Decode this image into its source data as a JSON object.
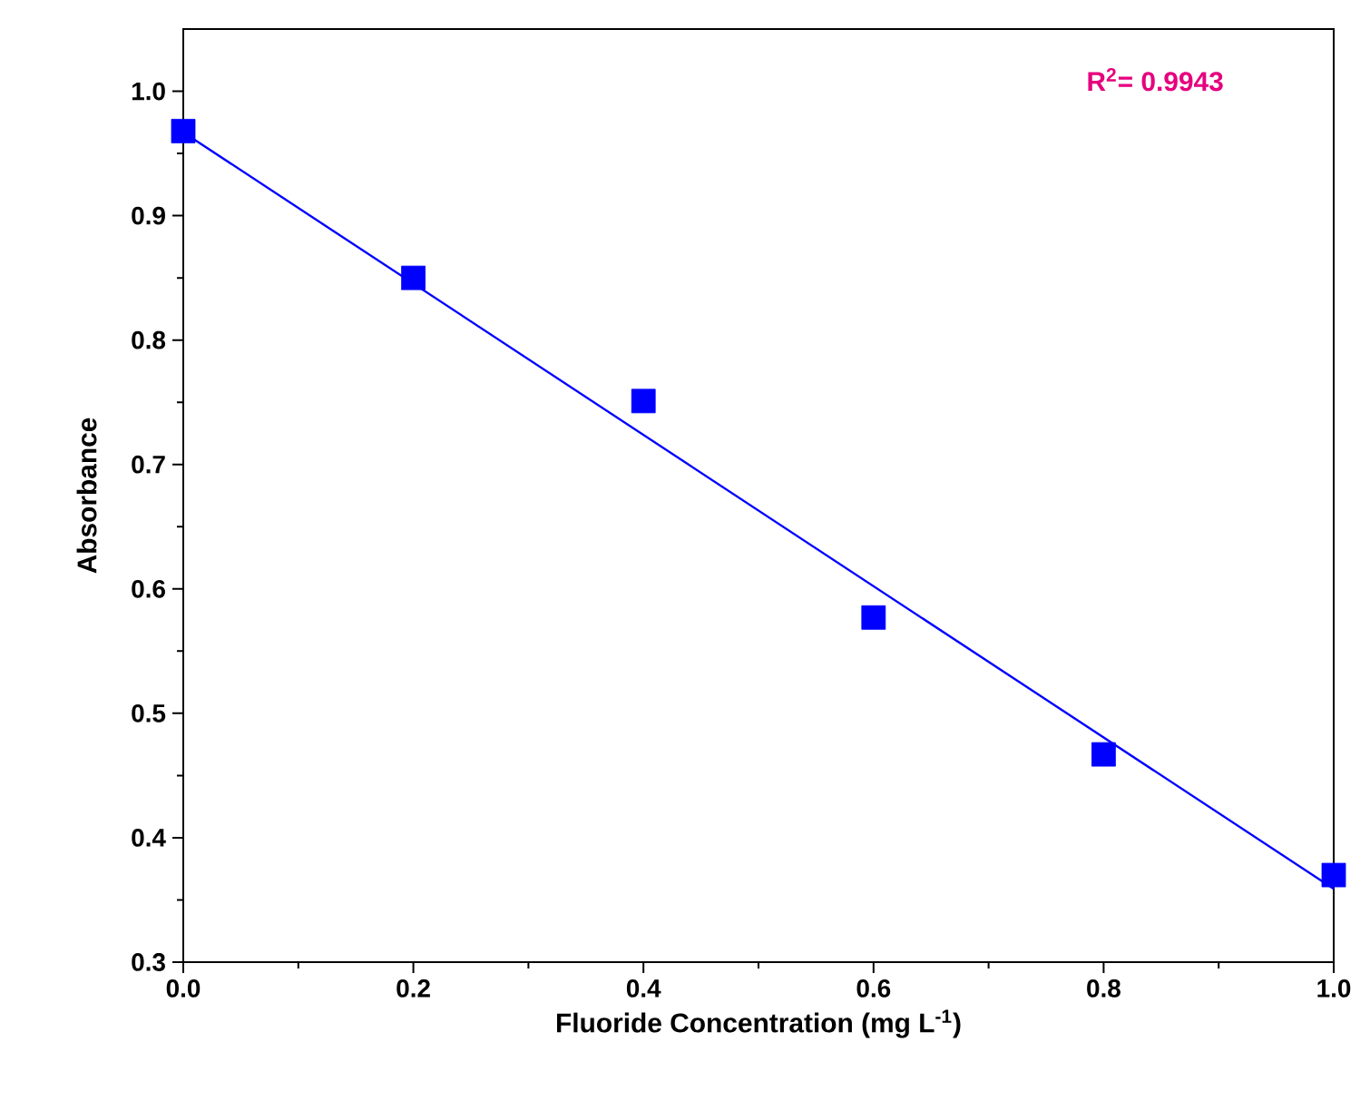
{
  "chart_data": {
    "type": "scatter",
    "xlabel": "Fluoride Concentration (mg L$^{-1}$)",
    "ylabel": "Absorbance",
    "x": [
      0,
      0.2,
      0.4,
      0.6,
      0.8,
      1.0
    ],
    "series": [
      {
        "color": "#0000ff",
        "marker": "square",
        "values": [
          0.968,
          0.85,
          0.751,
          0.577,
          0.467,
          0.37
        ]
      },
      {
        "type": "line",
        "color": "#0000ff",
        "x": [
          0,
          1.0
        ],
        "values": [
          0.967,
          0.359
        ]
      }
    ],
    "xlim": [
      0,
      1.0
    ],
    "ylim": [
      0.3,
      1.05
    ],
    "xticks": [
      {
        "value": 0,
        "label": "0.0"
      },
      0.2,
      0.4,
      0.6,
      0.8,
      {
        "value": 1.0,
        "label": "1.0"
      }
    ],
    "yticks": [
      0.3,
      0.4,
      0.5,
      0.6,
      0.7,
      0.8,
      0.9,
      {
        "value": 1.0,
        "label": "1.0"
      }
    ],
    "annotations": [
      "R$^{2}$= 0.9943"
    ]
  }
}
